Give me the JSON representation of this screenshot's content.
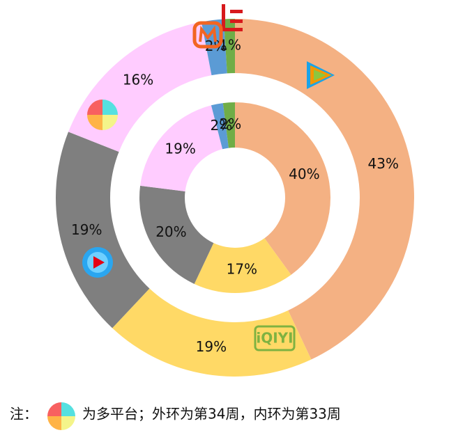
{
  "chart_data": {
    "type": "donut",
    "colors": [
      "#f4b183",
      "#ffd966",
      "#7f7f7f",
      "#ffccff",
      "#5b9bd5",
      "#70ad47"
    ],
    "series": [
      {
        "values": [
          43,
          19,
          19,
          16,
          2,
          1
        ],
        "value_labels": [
          "43%",
          "19%",
          "19%",
          "16%",
          "2%",
          "1%"
        ]
      },
      {
        "values": [
          40,
          17,
          20,
          19,
          2,
          2
        ],
        "value_labels": [
          "40%",
          "17%",
          "20%",
          "19%",
          "2%",
          "2%"
        ]
      }
    ],
    "annotations": [
      "iQIYI"
    ],
    "note": [
      "注：",
      "为多平台；外环为第34周，内环为第33周"
    ]
  }
}
